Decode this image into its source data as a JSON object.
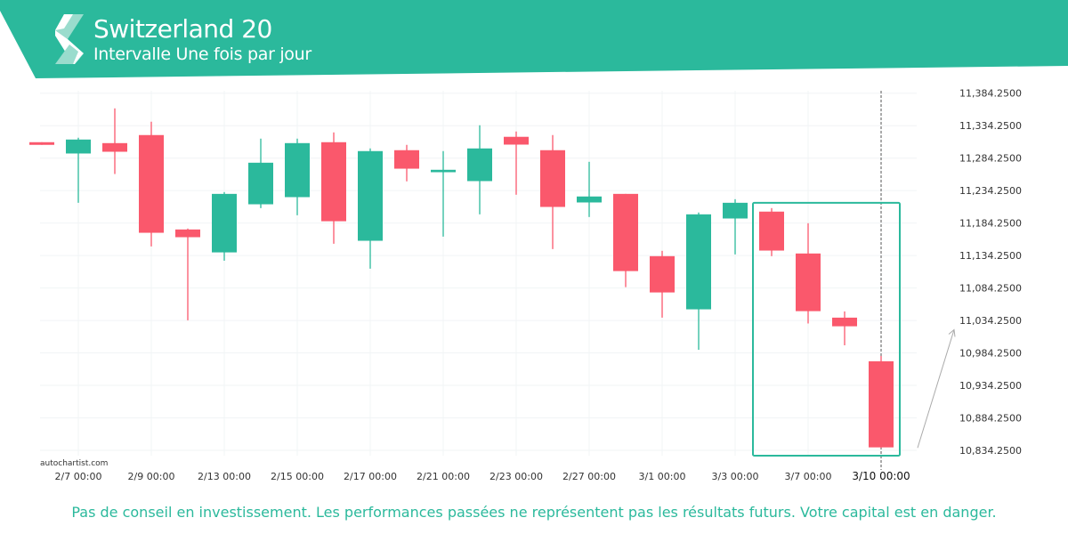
{
  "header": {
    "title": "Switzerland 20",
    "subtitle": "Intervalle Une fois par jour"
  },
  "watermark": "autochartist.com",
  "disclaimer": "Pas de conseil en investissement. Les performances passées ne représentent pas les résultats futurs. Votre capital est en danger.",
  "colors": {
    "brand": "#2bb99c",
    "bullish": "#2bb99c",
    "bearish": "#fa586c",
    "pattern_box": "#2bb99c"
  },
  "chart_data": {
    "type": "candlestick",
    "ylim": [
      10826,
      11388
    ],
    "y_ticks": [
      11384.25,
      11334.25,
      11284.25,
      11234.25,
      11184.25,
      11134.25,
      11084.25,
      11034.25,
      10984.25,
      10934.25,
      10884.25,
      10834.25
    ],
    "y_tick_labels": [
      "11,384.2500",
      "11,334.2500",
      "11,284.2500",
      "11,234.2500",
      "11,184.2500",
      "11,134.2500",
      "11,084.2500",
      "11,034.2500",
      "10,984.2500",
      "10,934.2500",
      "10,884.2500",
      "10,834.2500"
    ],
    "x_tick_labels": [
      {
        "candle": 1,
        "label": "2/7 00:00"
      },
      {
        "candle": 3,
        "label": "2/9 00:00"
      },
      {
        "candle": 5,
        "label": "2/13 00:00"
      },
      {
        "candle": 7,
        "label": "2/15 00:00"
      },
      {
        "candle": 9,
        "label": "2/17 00:00"
      },
      {
        "candle": 11,
        "label": "2/21 00:00"
      },
      {
        "candle": 13,
        "label": "2/23 00:00"
      },
      {
        "candle": 15,
        "label": "2/27 00:00"
      },
      {
        "candle": 17,
        "label": "3/1 00:00"
      },
      {
        "candle": 19,
        "label": "3/3 00:00"
      },
      {
        "candle": 21,
        "label": "3/7 00:00"
      },
      {
        "candle": 23,
        "label": "3/10 00:00",
        "highlight": true
      }
    ],
    "grid": true,
    "candles": [
      {
        "o": 11308.8,
        "h": 11308.8,
        "l": 11304.7,
        "c": 11304.7
      },
      {
        "o": 11291.4,
        "h": 11315.7,
        "l": 11215.5,
        "c": 11312.9
      },
      {
        "o": 11307.4,
        "h": 11360.9,
        "l": 11259.8,
        "c": 11294.1
      },
      {
        "o": 11319.8,
        "h": 11340.4,
        "l": 11148.3,
        "c": 11169.3
      },
      {
        "o": 11174.4,
        "h": 11175.8,
        "l": 11034.5,
        "c": 11162.5
      },
      {
        "o": 11139.1,
        "h": 11232.0,
        "l": 11126.3,
        "c": 11229.2
      },
      {
        "o": 11213.2,
        "h": 11314.3,
        "l": 11207.3,
        "c": 11277.2
      },
      {
        "o": 11224.2,
        "h": 11314.3,
        "l": 11196.3,
        "c": 11307.4
      },
      {
        "o": 11308.8,
        "h": 11323.9,
        "l": 11152.4,
        "c": 11187.1
      },
      {
        "o": 11157.0,
        "h": 11299.2,
        "l": 11114.0,
        "c": 11295.1
      },
      {
        "o": 11296.5,
        "h": 11304.7,
        "l": 11248.5,
        "c": 11268.0
      },
      {
        "o": 11262.6,
        "h": 11295.1,
        "l": 11163.4,
        "c": 11266.3
      },
      {
        "o": 11248.9,
        "h": 11334.9,
        "l": 11197.7,
        "c": 11299.2
      },
      {
        "o": 11317.1,
        "h": 11325.3,
        "l": 11227.9,
        "c": 11305.1
      },
      {
        "o": 11296.5,
        "h": 11319.8,
        "l": 11144.2,
        "c": 11209.1
      },
      {
        "o": 11216.0,
        "h": 11278.6,
        "l": 11193.6,
        "c": 11225.2
      },
      {
        "o": 11229.2,
        "h": 11229.2,
        "l": 11085.6,
        "c": 11110.3
      },
      {
        "o": 11133.3,
        "h": 11141.5,
        "l": 11038.6,
        "c": 11077.4
      },
      {
        "o": 11051.4,
        "h": 11200.5,
        "l": 10989.2,
        "c": 11197.7
      },
      {
        "o": 11191.3,
        "h": 11221.0,
        "l": 11136.0,
        "c": 11215.5
      },
      {
        "o": 11201.9,
        "h": 11207.3,
        "l": 11133.3,
        "c": 11141.9
      },
      {
        "o": 11137.4,
        "h": 11184.0,
        "l": 11029.6,
        "c": 11048.6
      },
      {
        "o": 11038.6,
        "h": 11048.2,
        "l": 10996.0,
        "c": 11025.3
      },
      {
        "o": 10971.4,
        "h": 10979.6,
        "l": 10838.0,
        "c": 10838.8
      }
    ],
    "pattern": {
      "start_candle": 20,
      "end_candle": 23,
      "price_high": 11215.5,
      "price_low": 10826
    },
    "projection": {
      "from_price": 10838,
      "to_price": 11020
    },
    "current_time_marker_candle": 23
  }
}
